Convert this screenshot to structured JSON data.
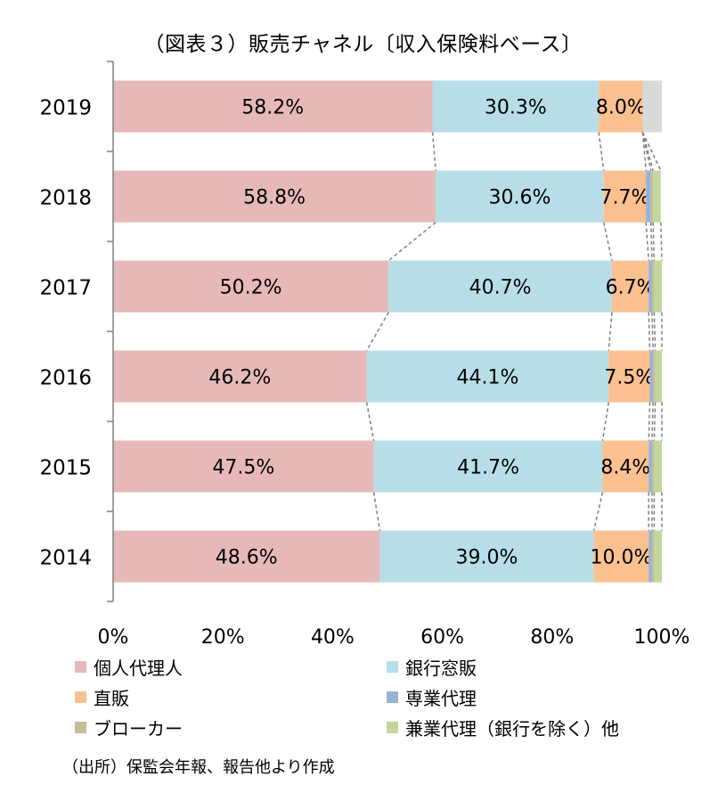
{
  "chart_data": {
    "type": "bar",
    "orientation": "horizontal",
    "stacked": "percent",
    "title": "（図表３）販売チャネル〔収入保険料ベース〕",
    "categories": [
      "2019",
      "2018",
      "2017",
      "2016",
      "2015",
      "2014"
    ],
    "series": [
      {
        "name": "個人代理人",
        "color": "#e6b9b8",
        "values": [
          58.2,
          58.8,
          50.2,
          46.2,
          47.5,
          48.6
        ],
        "labels": [
          "58.2%",
          "58.8%",
          "50.2%",
          "46.2%",
          "47.5%",
          "48.6%"
        ]
      },
      {
        "name": "銀行窓販",
        "color": "#b7dee8",
        "values": [
          30.3,
          30.6,
          40.7,
          44.1,
          41.7,
          39.0
        ],
        "labels": [
          "30.3%",
          "30.6%",
          "40.7%",
          "44.1%",
          "41.7%",
          "39.0%"
        ]
      },
      {
        "name": "直販",
        "color": "#fac090",
        "values": [
          8.0,
          7.7,
          6.7,
          7.5,
          8.4,
          10.0
        ],
        "labels": [
          "8.0%",
          "7.7%",
          "6.7%",
          "7.5%",
          "8.4%",
          "10.0%"
        ]
      },
      {
        "name": "専業代理",
        "color": "#95b3d7",
        "values": [
          0,
          0.9,
          0.6,
          0.6,
          0.6,
          0.6
        ],
        "labels": [
          "",
          "",
          "",
          "",
          "",
          ""
        ]
      },
      {
        "name": "ブローカー",
        "color": "#c4bd97",
        "values": [
          0,
          0.4,
          0.4,
          0.4,
          0.4,
          0.4
        ],
        "labels": [
          "",
          "",
          "",
          "",
          "",
          ""
        ]
      },
      {
        "name": "兼業代理（銀行を除く）他",
        "color": "#c3d69b",
        "values": [
          0,
          1.4,
          1.4,
          1.2,
          1.4,
          1.4
        ],
        "labels": [
          "",
          "",
          "",
          "",
          "",
          ""
        ]
      },
      {
        "name": "",
        "color": "#d9d9d9",
        "values": [
          3.5,
          0,
          0,
          0,
          0,
          0
        ],
        "labels": [
          "",
          "",
          "",
          "",
          "",
          ""
        ]
      }
    ],
    "x_ticks": [
      "0%",
      "20%",
      "40%",
      "60%",
      "80%",
      "100%"
    ],
    "xlim": [
      0,
      100
    ],
    "series_lines": true,
    "grid": false,
    "legend_position": "bottom"
  },
  "legend": [
    {
      "label": "個人代理人",
      "color": "#e6b9b8"
    },
    {
      "label": "銀行窓販",
      "color": "#b7dee8"
    },
    {
      "label": "直販",
      "color": "#fac090"
    },
    {
      "label": "専業代理",
      "color": "#95b3d7"
    },
    {
      "label": "ブローカー",
      "color": "#c4bd97"
    },
    {
      "label": "兼業代理（銀行を除く）他",
      "color": "#c3d69b"
    }
  ],
  "source_note": "（出所）保監会年報、報告他より作成"
}
